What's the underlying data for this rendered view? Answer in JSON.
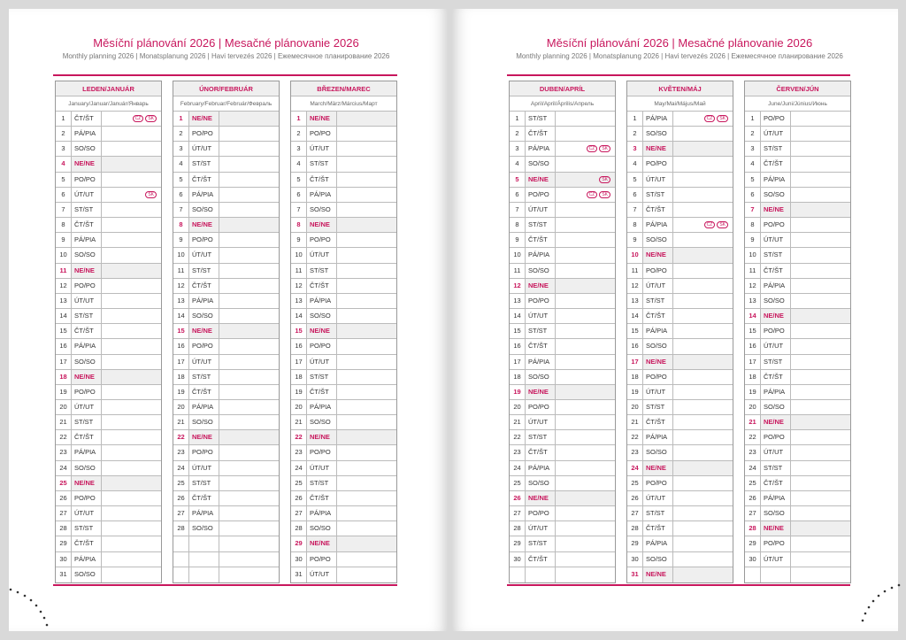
{
  "accent": "#c8175d",
  "pages": [
    {
      "title": "Měsíční plánování 2026 | Mesačné plánovanie 2026",
      "subtitle": "Monthly planning 2026 | Monatsplanung 2026 | Havi tervezés 2026 | Ежемесячное планирование 2026",
      "months": [
        {
          "name": "LEDEN/JANUÁR",
          "sub": "January/Januar/Január/Январь",
          "days": [
            [
              "1",
              "ČT/ŠT",
              [
                "CZ",
                "SK"
              ]
            ],
            [
              "2",
              "PÁ/PIA"
            ],
            [
              "3",
              "SO/SO"
            ],
            [
              "4",
              "NE/NE"
            ],
            [
              "5",
              "PO/PO"
            ],
            [
              "6",
              "ÚT/UT",
              [
                "SK"
              ]
            ],
            [
              "7",
              "ST/ST"
            ],
            [
              "8",
              "ČT/ŠT"
            ],
            [
              "9",
              "PÁ/PIA"
            ],
            [
              "10",
              "SO/SO"
            ],
            [
              "11",
              "NE/NE"
            ],
            [
              "12",
              "PO/PO"
            ],
            [
              "13",
              "ÚT/UT"
            ],
            [
              "14",
              "ST/ST"
            ],
            [
              "15",
              "ČT/ŠT"
            ],
            [
              "16",
              "PÁ/PIA"
            ],
            [
              "17",
              "SO/SO"
            ],
            [
              "18",
              "NE/NE"
            ],
            [
              "19",
              "PO/PO"
            ],
            [
              "20",
              "ÚT/UT"
            ],
            [
              "21",
              "ST/ST"
            ],
            [
              "22",
              "ČT/ŠT"
            ],
            [
              "23",
              "PÁ/PIA"
            ],
            [
              "24",
              "SO/SO"
            ],
            [
              "25",
              "NE/NE"
            ],
            [
              "26",
              "PO/PO"
            ],
            [
              "27",
              "ÚT/UT"
            ],
            [
              "28",
              "ST/ST"
            ],
            [
              "29",
              "ČT/ŠT"
            ],
            [
              "30",
              "PÁ/PIA"
            ],
            [
              "31",
              "SO/SO"
            ]
          ]
        },
        {
          "name": "ÚNOR/FEBRUÁR",
          "sub": "February/Februar/Február/Февраль",
          "days": [
            [
              "1",
              "NE/NE"
            ],
            [
              "2",
              "PO/PO"
            ],
            [
              "3",
              "ÚT/UT"
            ],
            [
              "4",
              "ST/ST"
            ],
            [
              "5",
              "ČT/ŠT"
            ],
            [
              "6",
              "PÁ/PIA"
            ],
            [
              "7",
              "SO/SO"
            ],
            [
              "8",
              "NE/NE"
            ],
            [
              "9",
              "PO/PO"
            ],
            [
              "10",
              "ÚT/UT"
            ],
            [
              "11",
              "ST/ST"
            ],
            [
              "12",
              "ČT/ŠT"
            ],
            [
              "13",
              "PÁ/PIA"
            ],
            [
              "14",
              "SO/SO"
            ],
            [
              "15",
              "NE/NE"
            ],
            [
              "16",
              "PO/PO"
            ],
            [
              "17",
              "ÚT/UT"
            ],
            [
              "18",
              "ST/ST"
            ],
            [
              "19",
              "ČT/ŠT"
            ],
            [
              "20",
              "PÁ/PIA"
            ],
            [
              "21",
              "SO/SO"
            ],
            [
              "22",
              "NE/NE"
            ],
            [
              "23",
              "PO/PO"
            ],
            [
              "24",
              "ÚT/UT"
            ],
            [
              "25",
              "ST/ST"
            ],
            [
              "26",
              "ČT/ŠT"
            ],
            [
              "27",
              "PÁ/PIA"
            ],
            [
              "28",
              "SO/SO"
            ]
          ]
        },
        {
          "name": "BŘEZEN/MAREC",
          "sub": "March/März/Március/Март",
          "days": [
            [
              "1",
              "NE/NE"
            ],
            [
              "2",
              "PO/PO"
            ],
            [
              "3",
              "ÚT/UT"
            ],
            [
              "4",
              "ST/ST"
            ],
            [
              "5",
              "ČT/ŠT"
            ],
            [
              "6",
              "PÁ/PIA"
            ],
            [
              "7",
              "SO/SO"
            ],
            [
              "8",
              "NE/NE"
            ],
            [
              "9",
              "PO/PO"
            ],
            [
              "10",
              "ÚT/UT"
            ],
            [
              "11",
              "ST/ST"
            ],
            [
              "12",
              "ČT/ŠT"
            ],
            [
              "13",
              "PÁ/PIA"
            ],
            [
              "14",
              "SO/SO"
            ],
            [
              "15",
              "NE/NE"
            ],
            [
              "16",
              "PO/PO"
            ],
            [
              "17",
              "ÚT/UT"
            ],
            [
              "18",
              "ST/ST"
            ],
            [
              "19",
              "ČT/ŠT"
            ],
            [
              "20",
              "PÁ/PIA"
            ],
            [
              "21",
              "SO/SO"
            ],
            [
              "22",
              "NE/NE"
            ],
            [
              "23",
              "PO/PO"
            ],
            [
              "24",
              "ÚT/UT"
            ],
            [
              "25",
              "ST/ST"
            ],
            [
              "26",
              "ČT/ŠT"
            ],
            [
              "27",
              "PÁ/PIA"
            ],
            [
              "28",
              "SO/SO"
            ],
            [
              "29",
              "NE/NE"
            ],
            [
              "30",
              "PO/PO"
            ],
            [
              "31",
              "ÚT/UT"
            ]
          ]
        }
      ]
    },
    {
      "title": "Měsíční plánování 2026 | Mesačné plánovanie 2026",
      "subtitle": "Monthly planning 2026 | Monatsplanung 2026 | Havi tervezés 2026 | Ежемесячное планирование 2026",
      "months": [
        {
          "name": "DUBEN/APRÍL",
          "sub": "April/April/Április/Апрель",
          "days": [
            [
              "1",
              "ST/ST"
            ],
            [
              "2",
              "ČT/ŠT"
            ],
            [
              "3",
              "PÁ/PIA",
              [
                "CZ",
                "SK"
              ]
            ],
            [
              "4",
              "SO/SO"
            ],
            [
              "5",
              "NE/NE",
              [
                "SK"
              ]
            ],
            [
              "6",
              "PO/PO",
              [
                "CZ",
                "SK"
              ]
            ],
            [
              "7",
              "ÚT/UT"
            ],
            [
              "8",
              "ST/ST"
            ],
            [
              "9",
              "ČT/ŠT"
            ],
            [
              "10",
              "PÁ/PIA"
            ],
            [
              "11",
              "SO/SO"
            ],
            [
              "12",
              "NE/NE"
            ],
            [
              "13",
              "PO/PO"
            ],
            [
              "14",
              "ÚT/UT"
            ],
            [
              "15",
              "ST/ST"
            ],
            [
              "16",
              "ČT/ŠT"
            ],
            [
              "17",
              "PÁ/PIA"
            ],
            [
              "18",
              "SO/SO"
            ],
            [
              "19",
              "NE/NE"
            ],
            [
              "20",
              "PO/PO"
            ],
            [
              "21",
              "ÚT/UT"
            ],
            [
              "22",
              "ST/ST"
            ],
            [
              "23",
              "ČT/ŠT"
            ],
            [
              "24",
              "PÁ/PIA"
            ],
            [
              "25",
              "SO/SO"
            ],
            [
              "26",
              "NE/NE"
            ],
            [
              "27",
              "PO/PO"
            ],
            [
              "28",
              "ÚT/UT"
            ],
            [
              "29",
              "ST/ST"
            ],
            [
              "30",
              "ČT/ŠT"
            ]
          ]
        },
        {
          "name": "KVĚTEN/MÁJ",
          "sub": "May/Mai/Május/Май",
          "days": [
            [
              "1",
              "PÁ/PIA",
              [
                "CZ",
                "SK"
              ]
            ],
            [
              "2",
              "SO/SO"
            ],
            [
              "3",
              "NE/NE"
            ],
            [
              "4",
              "PO/PO"
            ],
            [
              "5",
              "ÚT/UT"
            ],
            [
              "6",
              "ST/ST"
            ],
            [
              "7",
              "ČT/ŠT"
            ],
            [
              "8",
              "PÁ/PIA",
              [
                "CZ",
                "SK"
              ]
            ],
            [
              "9",
              "SO/SO"
            ],
            [
              "10",
              "NE/NE"
            ],
            [
              "11",
              "PO/PO"
            ],
            [
              "12",
              "ÚT/UT"
            ],
            [
              "13",
              "ST/ST"
            ],
            [
              "14",
              "ČT/ŠT"
            ],
            [
              "15",
              "PÁ/PIA"
            ],
            [
              "16",
              "SO/SO"
            ],
            [
              "17",
              "NE/NE"
            ],
            [
              "18",
              "PO/PO"
            ],
            [
              "19",
              "ÚT/UT"
            ],
            [
              "20",
              "ST/ST"
            ],
            [
              "21",
              "ČT/ŠT"
            ],
            [
              "22",
              "PÁ/PIA"
            ],
            [
              "23",
              "SO/SO"
            ],
            [
              "24",
              "NE/NE"
            ],
            [
              "25",
              "PO/PO"
            ],
            [
              "26",
              "ÚT/UT"
            ],
            [
              "27",
              "ST/ST"
            ],
            [
              "28",
              "ČT/ŠT"
            ],
            [
              "29",
              "PÁ/PIA"
            ],
            [
              "30",
              "SO/SO"
            ],
            [
              "31",
              "NE/NE"
            ]
          ]
        },
        {
          "name": "ČERVEN/JÚN",
          "sub": "June/Juni/Június/Июнь",
          "days": [
            [
              "1",
              "PO/PO"
            ],
            [
              "2",
              "ÚT/UT"
            ],
            [
              "3",
              "ST/ST"
            ],
            [
              "4",
              "ČT/ŠT"
            ],
            [
              "5",
              "PÁ/PIA"
            ],
            [
              "6",
              "SO/SO"
            ],
            [
              "7",
              "NE/NE"
            ],
            [
              "8",
              "PO/PO"
            ],
            [
              "9",
              "ÚT/UT"
            ],
            [
              "10",
              "ST/ST"
            ],
            [
              "11",
              "ČT/ŠT"
            ],
            [
              "12",
              "PÁ/PIA"
            ],
            [
              "13",
              "SO/SO"
            ],
            [
              "14",
              "NE/NE"
            ],
            [
              "15",
              "PO/PO"
            ],
            [
              "16",
              "ÚT/UT"
            ],
            [
              "17",
              "ST/ST"
            ],
            [
              "18",
              "ČT/ŠT"
            ],
            [
              "19",
              "PÁ/PIA"
            ],
            [
              "20",
              "SO/SO"
            ],
            [
              "21",
              "NE/NE"
            ],
            [
              "22",
              "PO/PO"
            ],
            [
              "23",
              "ÚT/UT"
            ],
            [
              "24",
              "ST/ST"
            ],
            [
              "25",
              "ČT/ŠT"
            ],
            [
              "26",
              "PÁ/PIA"
            ],
            [
              "27",
              "SO/SO"
            ],
            [
              "28",
              "NE/NE"
            ],
            [
              "29",
              "PO/PO"
            ],
            [
              "30",
              "ÚT/UT"
            ]
          ]
        }
      ]
    }
  ]
}
